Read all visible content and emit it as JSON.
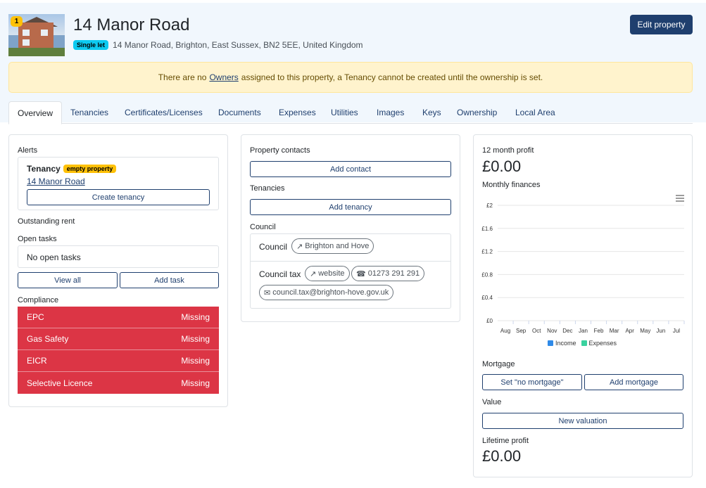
{
  "property": {
    "badge_count": "1",
    "title": "14 Manor Road",
    "type_badge": "Single let",
    "address": "14 Manor Road, Brighton, East Sussex, BN2 5EE, United Kingdom",
    "edit_label": "Edit property"
  },
  "warning": {
    "before": "There are no",
    "link": "Owners",
    "after": "assigned to this property, a Tenancy cannot be created until the ownership is set."
  },
  "tabs": [
    {
      "label": "Overview",
      "active": true
    },
    {
      "label": "Tenancies"
    },
    {
      "label": "Certificates/Licenses"
    },
    {
      "label": "Documents"
    },
    {
      "label": "Expenses"
    },
    {
      "label": "Utilities"
    },
    {
      "label": "Images"
    },
    {
      "label": "Keys"
    },
    {
      "label": "Ownership"
    },
    {
      "label": "Local Area"
    }
  ],
  "left": {
    "alerts_label": "Alerts",
    "tenancy_title": "Tenancy",
    "tenancy_badge": "empty property",
    "tenancy_link": "14 Manor Road",
    "create_tenancy": "Create tenancy",
    "outstanding_rent": "Outstanding rent",
    "open_tasks_label": "Open tasks",
    "no_tasks": "No open tasks",
    "view_all": "View all",
    "add_task": "Add task",
    "compliance_label": "Compliance",
    "compliance": [
      {
        "name": "EPC",
        "status": "Missing"
      },
      {
        "name": "Gas Safety",
        "status": "Missing"
      },
      {
        "name": "EICR",
        "status": "Missing"
      },
      {
        "name": "Selective Licence",
        "status": "Missing"
      }
    ]
  },
  "middle": {
    "contacts_label": "Property contacts",
    "add_contact": "Add contact",
    "tenancies_label": "Tenancies",
    "add_tenancy": "Add tenancy",
    "council_label": "Council",
    "council_row_label": "Council",
    "council_name": "Brighton and Hove",
    "council_tax_label": "Council tax",
    "website": "website",
    "phone": "01273 291 291",
    "email": "council.tax@brighton-hove.gov.uk"
  },
  "right": {
    "profit_label": "12 month profit",
    "profit_value": "£0.00",
    "finances_label": "Monthly finances",
    "mortgage_label": "Mortgage",
    "set_no_mortgage": "Set \"no mortgage\"",
    "add_mortgage": "Add mortgage",
    "value_label": "Value",
    "new_valuation": "New valuation",
    "lifetime_label": "Lifetime profit",
    "lifetime_value": "£0.00"
  },
  "colors": {
    "primary": "#1f3f6e",
    "danger": "#dc3545",
    "warning": "#ffc107",
    "info": "#0dcaf0",
    "income": "#2f8ae8",
    "expenses": "#3ad29f"
  },
  "chart_data": {
    "type": "bar",
    "categories": [
      "Aug",
      "Sep",
      "Oct",
      "Nov",
      "Dec",
      "Jan",
      "Feb",
      "Mar",
      "Apr",
      "May",
      "Jun",
      "Jul"
    ],
    "y_ticks": [
      "£0",
      "£0.4",
      "£0.8",
      "£1.2",
      "£1.6",
      "£2"
    ],
    "ylim": [
      0,
      2
    ],
    "series": [
      {
        "name": "Income",
        "values": [
          0,
          0,
          0,
          0,
          0,
          0,
          0,
          0,
          0,
          0,
          0,
          0
        ]
      },
      {
        "name": "Expenses",
        "values": [
          0,
          0,
          0,
          0,
          0,
          0,
          0,
          0,
          0,
          0,
          0,
          0
        ]
      }
    ],
    "legend_position": "bottom",
    "grid": true,
    "menu_icon": "hamburger-icon"
  }
}
